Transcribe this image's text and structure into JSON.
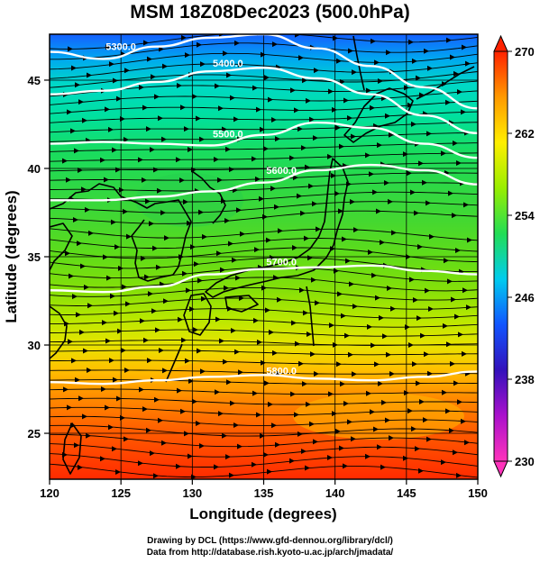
{
  "title": "MSM 18Z08Dec2023 (500.0hPa)",
  "x_axis": {
    "label": "Longitude (degrees)",
    "ticks": [
      "120",
      "125",
      "130",
      "135",
      "140",
      "145",
      "150"
    ],
    "range": [
      120,
      150
    ]
  },
  "y_axis": {
    "label": "Latitude  (degrees)",
    "ticks": [
      "25",
      "30",
      "35",
      "40",
      "45"
    ],
    "range": [
      22.4,
      47.6
    ]
  },
  "colorbar": {
    "ticks": [
      "270",
      "262",
      "254",
      "246",
      "238",
      "230"
    ],
    "range": [
      230,
      270
    ],
    "colors": [
      "#ff33bb",
      "#aa11cc",
      "#3311bb",
      "#1155ff",
      "#00ccee",
      "#22dd55",
      "#99ee00",
      "#ffee00",
      "#ff9900",
      "#ff2200"
    ]
  },
  "contours": [
    {
      "label": "5300.0",
      "lat": [
        46.6,
        46.2,
        46.9,
        47.4,
        47.6,
        46.8,
        45.8,
        44.6,
        43.4
      ]
    },
    {
      "label": "5400.0",
      "lat": [
        44.2,
        44.4,
        44.9,
        45.5,
        45.7,
        45.1,
        44.2,
        43.0,
        42.0
      ]
    },
    {
      "label": "5500.0",
      "lat": [
        41.4,
        41.5,
        41.4,
        41.3,
        41.9,
        42.6,
        42.3,
        41.4,
        40.6
      ]
    },
    {
      "label": "5600.0",
      "lat": [
        38.2,
        38.2,
        38.4,
        38.7,
        39.2,
        39.9,
        40.2,
        39.9,
        39.1
      ]
    },
    {
      "label": "5700.0",
      "lat": [
        33.1,
        33.0,
        33.3,
        34.0,
        34.3,
        34.4,
        34.5,
        34.2,
        34.0
      ]
    },
    {
      "label": "5800.0",
      "lat": [
        27.9,
        27.8,
        28.0,
        28.2,
        28.3,
        28.1,
        28.0,
        28.2,
        28.5
      ]
    }
  ],
  "contour_lons": [
    120,
    123.75,
    127.5,
    131.25,
    135,
    138.75,
    142.5,
    146.25,
    150
  ],
  "temperature_bands": [
    {
      "lat": 47.6,
      "color": "#1560ff"
    },
    {
      "lat": 46.2,
      "color": "#00a8f0"
    },
    {
      "lat": 44.8,
      "color": "#00d8c8"
    },
    {
      "lat": 43.0,
      "color": "#00e0a0"
    },
    {
      "lat": 41.0,
      "color": "#18dd60"
    },
    {
      "lat": 39.0,
      "color": "#2ed845"
    },
    {
      "lat": 37.0,
      "color": "#44d830"
    },
    {
      "lat": 35.0,
      "color": "#60dc18"
    },
    {
      "lat": 33.0,
      "color": "#88e008"
    },
    {
      "lat": 31.5,
      "color": "#b8e800"
    },
    {
      "lat": 30.0,
      "color": "#e8e400"
    },
    {
      "lat": 28.6,
      "color": "#ffc000"
    },
    {
      "lat": 27.0,
      "color": "#ff8a00"
    },
    {
      "lat": 25.0,
      "color": "#ff5a00"
    },
    {
      "lat": 22.4,
      "color": "#ff2a00"
    }
  ],
  "credit_lines": [
    "Drawing by DCL (https://www.gfd-dennou.org/library/dcl/)",
    "Data from http://database.rish.kyoto-u.ac.jp/arch/jmadata/"
  ]
}
